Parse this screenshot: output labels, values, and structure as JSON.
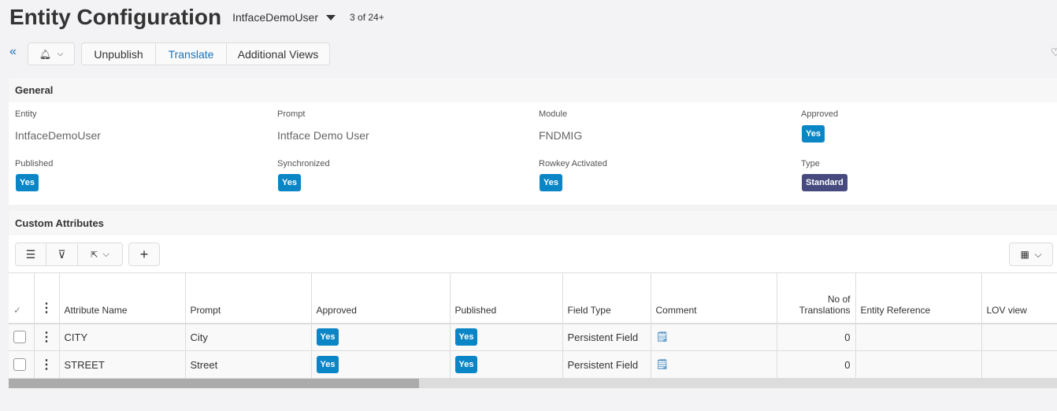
{
  "header": {
    "title": "Entity Configuration",
    "record": "IntfaceDemoUser",
    "count": "3 of 24+"
  },
  "toolbar": {
    "unpublish": "Unpublish",
    "translate": "Translate",
    "additional_views": "Additional Views"
  },
  "general": {
    "title": "General",
    "fields": [
      {
        "label": "Entity",
        "value": "IntfaceDemoUser"
      },
      {
        "label": "Prompt",
        "value": "Intface Demo User"
      },
      {
        "label": "Module",
        "value": "FNDMIG"
      },
      {
        "label": "Approved",
        "badge": "Yes"
      },
      {
        "label": "Published",
        "badge": "Yes"
      },
      {
        "label": "Synchronized",
        "badge": "Yes"
      },
      {
        "label": "Rowkey Activated",
        "badge": "Yes"
      },
      {
        "label": "Type",
        "badge": "Standard"
      }
    ]
  },
  "custom": {
    "title": "Custom Attributes",
    "columns": [
      "Attribute Name",
      "Prompt",
      "Approved",
      "Published",
      "Field Type",
      "Comment",
      "No of Translations",
      "Entity Reference",
      "LOV view"
    ],
    "rows": [
      {
        "name": "CITY",
        "prompt": "City",
        "approved": "Yes",
        "published": "Yes",
        "field_type": "Persistent Field",
        "translations": "0"
      },
      {
        "name": "STREET",
        "prompt": "Street",
        "approved": "Yes",
        "published": "Yes",
        "field_type": "Persistent Field",
        "translations": "0"
      }
    ]
  },
  "colors": {
    "accent": "#0a86c6",
    "standard": "#474a7f",
    "link": "#1a73b8"
  }
}
